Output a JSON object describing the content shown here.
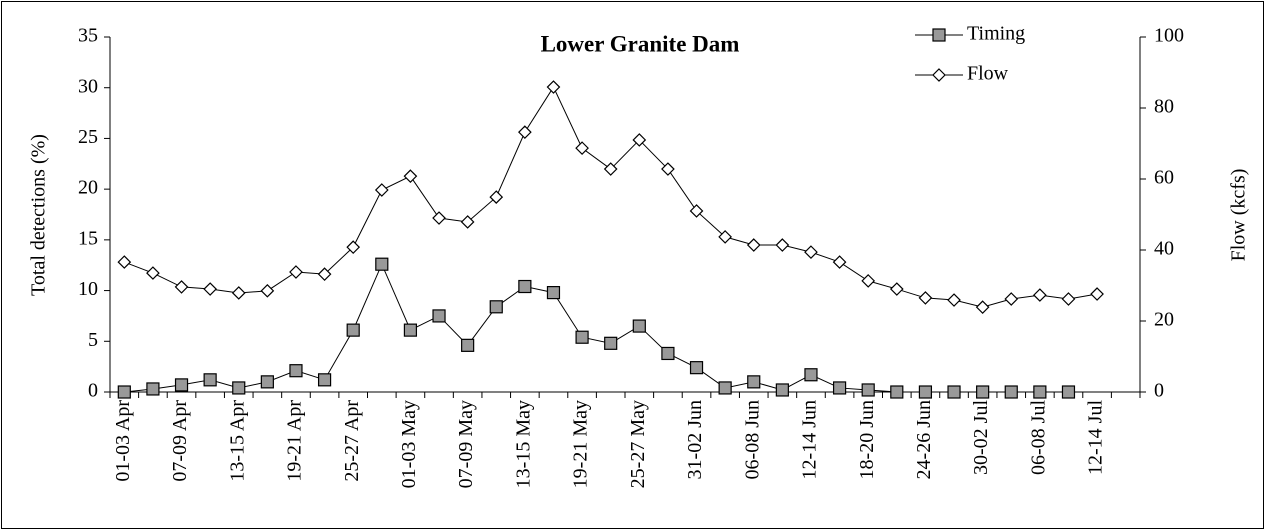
{
  "chart_data": {
    "type": "line",
    "title": "Lower Granite Dam",
    "categories": [
      "01-03 Apr",
      null,
      "07-09 Apr",
      null,
      "13-15 Apr",
      null,
      "19-21 Apr",
      null,
      "25-27 Apr",
      null,
      "01-03 May",
      null,
      "07-09 May",
      null,
      "13-15 May",
      null,
      "19-21 May",
      null,
      "25-27 May",
      null,
      "31-02 Jun",
      null,
      "06-08 Jun",
      null,
      "12-14 Jun",
      null,
      "18-20 Jun",
      null,
      "24-26 Jun",
      null,
      "30-02 Jul",
      null,
      "06-08 Jul",
      null,
      "12-14 Jul",
      null
    ],
    "y_label": "Total detections (%)",
    "y2_label": "Flow (kcfs)",
    "ylim": [
      0,
      35
    ],
    "yticks": [
      0,
      5,
      10,
      15,
      20,
      25,
      30,
      35
    ],
    "y2lim": [
      0,
      100
    ],
    "y2ticks": [
      0,
      20,
      40,
      60,
      80,
      100
    ],
    "legend": "upper-right",
    "series": [
      {
        "name": "Timing",
        "color": "#999999",
        "marker": "square",
        "values": [
          0,
          0.3,
          0.7,
          1.2,
          0.4,
          1.0,
          2.1,
          1.2,
          6.1,
          12.6,
          6.1,
          7.5,
          4.6,
          8.4,
          10.4,
          9.8,
          5.4,
          4.8,
          6.5,
          3.8,
          2.4,
          0.4,
          1.0,
          0.2,
          1.7,
          0.4,
          0.2,
          0,
          0,
          0,
          0,
          0,
          0,
          0,
          null,
          null
        ]
      },
      {
        "name": "Flow",
        "color": "#ffffff",
        "marker": "diamond",
        "axis": "y2",
        "values": [
          36.6,
          33.5,
          29.6,
          29,
          27.9,
          28.5,
          33.8,
          33.2,
          40.8,
          56.9,
          60.8,
          49,
          47.9,
          54.9,
          73.2,
          85.9,
          68.7,
          62.8,
          71,
          62.8,
          51,
          43.7,
          41.4,
          41.4,
          39.4,
          36.6,
          31.3,
          29,
          26.5,
          25.9,
          23.9,
          26.2,
          27.3,
          26.2,
          27.6,
          null
        ]
      }
    ]
  }
}
